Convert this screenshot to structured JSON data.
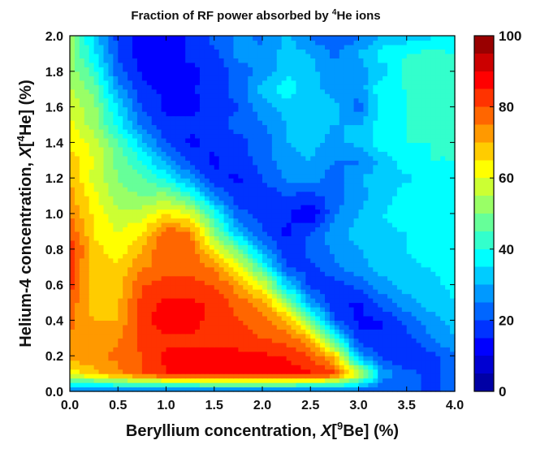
{
  "chart_data": {
    "type": "heatmap",
    "title": {
      "prefix": "Fraction of RF power absorbed by ",
      "sup": "4",
      "suffix": "He ions"
    },
    "xlabel": {
      "prefix": "Beryllium concentration,  ",
      "italic": "X",
      "bracket_open": "[",
      "sup": "9",
      "suffix": "Be] (%)"
    },
    "ylabel": {
      "prefix": "Helium-4 concentration,  ",
      "italic": "X",
      "bracket_open": "[",
      "sup": "4",
      "suffix": "He] (%)"
    },
    "xlim": [
      0.0,
      4.0
    ],
    "ylim": [
      0.0,
      2.0
    ],
    "x_ticks": [
      "0.0",
      "0.5",
      "1.0",
      "1.5",
      "2.0",
      "2.5",
      "3.0",
      "3.5",
      "4.0"
    ],
    "y_ticks": [
      "0.0",
      "0.2",
      "0.4",
      "0.6",
      "0.8",
      "1.0",
      "1.2",
      "1.4",
      "1.6",
      "1.8",
      "2.0"
    ],
    "colorbar": {
      "range": [
        0,
        100
      ],
      "ticks": [
        "0",
        "20",
        "40",
        "60",
        "80",
        "100"
      ],
      "colormap": [
        "#00008f",
        "#0000ff",
        "#0080ff",
        "#00ffff",
        "#80ff80",
        "#ffff00",
        "#ff8000",
        "#ff0000",
        "#800000"
      ]
    },
    "x": [
      0.0,
      0.25,
      0.5,
      0.75,
      1.0,
      1.25,
      1.5,
      1.75,
      2.0,
      2.25,
      2.5,
      2.75,
      3.0,
      3.25,
      3.5,
      3.75,
      4.0
    ],
    "y": [
      0.0,
      0.1,
      0.2,
      0.3,
      0.4,
      0.5,
      0.6,
      0.7,
      0.8,
      0.9,
      1.0,
      1.1,
      1.2,
      1.3,
      1.4,
      1.5,
      1.6,
      1.7,
      1.8,
      1.9,
      2.0
    ],
    "z": [
      [
        20,
        20,
        20,
        20,
        20,
        20,
        20,
        20,
        20,
        20,
        20,
        20,
        20,
        20,
        20,
        20,
        20
      ],
      [
        62,
        68,
        74,
        80,
        85,
        86,
        88,
        88,
        88,
        87,
        86,
        82,
        60,
        28,
        22,
        18,
        22
      ],
      [
        72,
        74,
        76,
        80,
        86,
        86,
        87,
        87,
        86,
        85,
        80,
        68,
        28,
        18,
        15,
        18,
        25
      ],
      [
        74,
        74,
        74,
        82,
        84,
        84,
        82,
        82,
        80,
        78,
        70,
        40,
        16,
        15,
        18,
        25,
        30
      ],
      [
        77,
        70,
        70,
        84,
        88,
        88,
        82,
        80,
        78,
        70,
        50,
        20,
        14,
        15,
        22,
        28,
        32
      ],
      [
        78,
        67,
        69,
        82,
        86,
        86,
        84,
        78,
        72,
        55,
        28,
        16,
        14,
        22,
        28,
        32,
        35
      ],
      [
        82,
        68,
        68,
        80,
        82,
        82,
        80,
        72,
        60,
        34,
        18,
        17,
        22,
        28,
        32,
        34,
        36
      ],
      [
        82,
        67,
        66,
        74,
        78,
        78,
        74,
        62,
        42,
        20,
        18,
        24,
        28,
        32,
        34,
        35,
        37
      ],
      [
        84,
        67,
        62,
        70,
        80,
        80,
        62,
        48,
        28,
        16,
        22,
        26,
        30,
        32,
        35,
        38,
        39
      ],
      [
        80,
        64,
        60,
        64,
        78,
        74,
        50,
        30,
        20,
        14,
        20,
        28,
        32,
        34,
        35,
        37,
        38
      ],
      [
        74,
        64,
        56,
        58,
        64,
        60,
        40,
        22,
        18,
        16,
        10,
        24,
        30,
        35,
        38,
        38,
        39
      ],
      [
        72,
        62,
        52,
        50,
        52,
        42,
        26,
        16,
        16,
        20,
        18,
        22,
        28,
        32,
        38,
        38,
        38
      ],
      [
        70,
        58,
        50,
        46,
        38,
        28,
        16,
        14,
        20,
        26,
        28,
        22,
        30,
        32,
        34,
        38,
        40
      ],
      [
        68,
        60,
        48,
        40,
        28,
        18,
        14,
        18,
        22,
        28,
        30,
        25,
        24,
        32,
        38,
        40,
        40
      ],
      [
        64,
        58,
        46,
        32,
        20,
        14,
        16,
        18,
        22,
        30,
        32,
        28,
        32,
        38,
        40,
        40,
        40
      ],
      [
        62,
        52,
        38,
        24,
        16,
        16,
        18,
        22,
        24,
        30,
        32,
        30,
        30,
        38,
        40,
        41,
        40
      ],
      [
        58,
        52,
        34,
        20,
        14,
        14,
        16,
        20,
        28,
        32,
        35,
        32,
        22,
        38,
        40,
        42,
        45
      ],
      [
        56,
        48,
        28,
        16,
        14,
        14,
        18,
        22,
        32,
        38,
        32,
        28,
        26,
        40,
        40,
        44,
        45
      ],
      [
        54,
        42,
        22,
        14,
        14,
        14,
        16,
        22,
        26,
        34,
        32,
        26,
        28,
        32,
        42,
        44,
        45
      ],
      [
        52,
        36,
        20,
        12,
        12,
        16,
        18,
        28,
        26,
        32,
        30,
        24,
        30,
        38,
        40,
        42,
        40
      ],
      [
        52,
        34,
        18,
        12,
        12,
        16,
        22,
        26,
        24,
        32,
        24,
        20,
        24,
        30,
        32,
        34,
        36
      ]
    ]
  }
}
